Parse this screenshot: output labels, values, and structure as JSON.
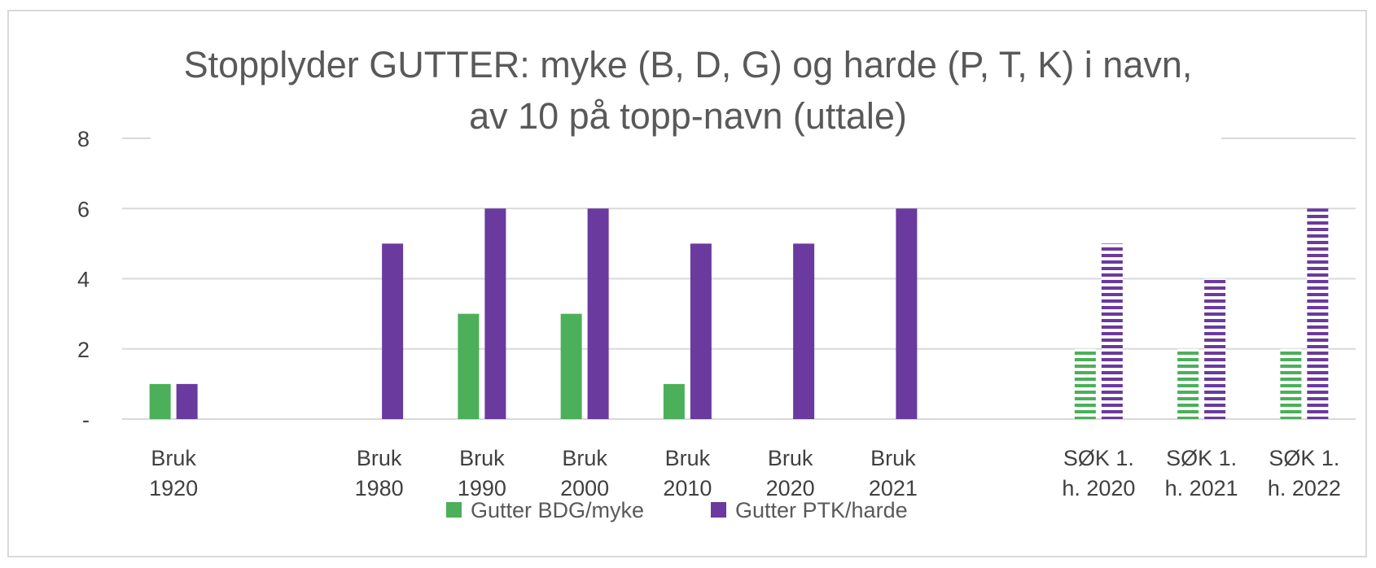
{
  "chart_data": {
    "type": "bar",
    "title_lines": [
      "Stopplyder GUTTER: myke (B, D, G) og harde (P, T, K) i navn,",
      "av 10 på topp-navn (uttale)"
    ],
    "categories": [
      [
        "Bruk",
        "1920"
      ],
      [
        "",
        ""
      ],
      [
        "Bruk",
        "1980"
      ],
      [
        "Bruk",
        "1990"
      ],
      [
        "Bruk",
        "2000"
      ],
      [
        "Bruk",
        "2010"
      ],
      [
        "Bruk",
        "2020"
      ],
      [
        "Bruk",
        "2021"
      ],
      [
        "",
        ""
      ],
      [
        "SØK 1.",
        "h. 2020"
      ],
      [
        "SØK 1.",
        "h. 2021"
      ],
      [
        "SØK 1.",
        "h. 2022"
      ]
    ],
    "series": [
      {
        "name": "Gutter BDG/myke",
        "color": "#4caf5a",
        "values": [
          1,
          null,
          null,
          3,
          3,
          1,
          null,
          null,
          null,
          2,
          2,
          2
        ],
        "striped": [
          false,
          false,
          false,
          false,
          false,
          false,
          false,
          false,
          false,
          true,
          true,
          true
        ]
      },
      {
        "name": "Gutter PTK/harde",
        "color": "#6a3a9e",
        "values": [
          1,
          null,
          5,
          6,
          6,
          5,
          5,
          6,
          null,
          5,
          4,
          6
        ],
        "striped": [
          false,
          false,
          false,
          false,
          false,
          false,
          false,
          false,
          false,
          true,
          true,
          true
        ]
      }
    ],
    "y_ticks": [
      {
        "value": 0,
        "label": "-"
      },
      {
        "value": 2,
        "label": "2"
      },
      {
        "value": 4,
        "label": "4"
      },
      {
        "value": 6,
        "label": "6"
      },
      {
        "value": 8,
        "label": "8"
      }
    ],
    "ylim": [
      0,
      8
    ],
    "grid": true,
    "legend_position": "bottom"
  }
}
